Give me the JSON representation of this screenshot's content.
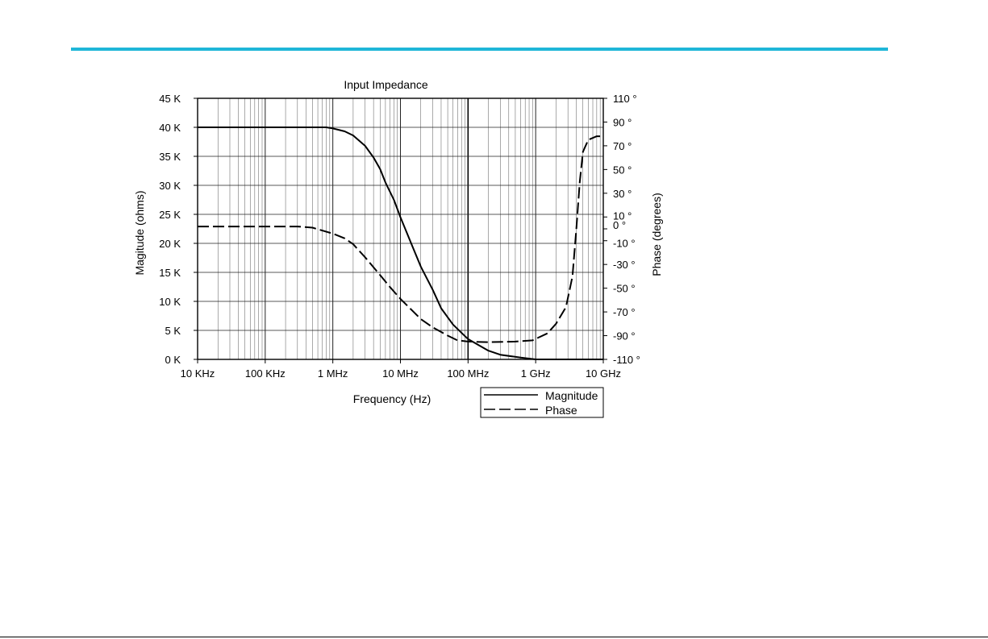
{
  "colors": {
    "accent_rule": "#1fb6d8",
    "line": "#000000",
    "grid": "#555555"
  },
  "chart_data": {
    "type": "line",
    "title": "Input Impedance",
    "xlabel": "Frequency (Hz)",
    "ylabel_left": "Magitude (ohms)",
    "ylabel_right": "Phase (degrees)",
    "x_scale": "log",
    "xlim": [
      10000,
      10000000000
    ],
    "x_ticks": [
      10000,
      100000,
      1000000,
      10000000,
      100000000,
      1000000000,
      10000000000
    ],
    "x_tick_labels": [
      "10 KHz",
      "100 KHz",
      "1 MHz",
      "10 MHz",
      "100 MHz",
      "1 GHz",
      "10 GHz"
    ],
    "ylim_left": [
      0,
      45000
    ],
    "y_left_ticks": [
      0,
      5000,
      10000,
      15000,
      20000,
      25000,
      30000,
      35000,
      40000,
      45000
    ],
    "y_left_tick_labels": [
      "0 K",
      "5 K",
      "10 K",
      "15 K",
      "20 K",
      "25 K",
      "30 K",
      "35 K",
      "40 K",
      "45 K"
    ],
    "ylim_right": [
      -110,
      110
    ],
    "y_right_ticks": [
      110,
      90,
      70,
      50,
      30,
      10,
      0,
      -10,
      -30,
      -50,
      -70,
      -90,
      -110
    ],
    "y_right_tick_labels": [
      "110 °",
      "90 °",
      "70 °",
      "50 °",
      "30 °",
      "10 °",
      "0 °",
      "-10 °",
      "-30 °",
      "-50 °",
      "-70 °",
      "-90 °",
      "-110 °"
    ],
    "grid": true,
    "legend_position": "bottom-right, below plot",
    "series": [
      {
        "name": "Magnitude",
        "axis": "left",
        "style": "solid",
        "x": [
          10000,
          100000,
          800000,
          1000000,
          1500000,
          2000000,
          3000000,
          4000000,
          5000000,
          6000000,
          8000000,
          10000000,
          15000000,
          20000000,
          30000000,
          40000000,
          60000000,
          100000000,
          200000000,
          300000000,
          600000000,
          1000000000,
          3000000000,
          10000000000
        ],
        "values": [
          40000,
          40000,
          40000,
          39800,
          39300,
          38600,
          36800,
          34800,
          32800,
          30500,
          27500,
          24500,
          19500,
          16000,
          12000,
          8800,
          6000,
          3500,
          1500,
          800,
          300,
          0,
          0,
          0
        ]
      },
      {
        "name": "Phase",
        "axis": "right",
        "style": "dashed",
        "x": [
          10000,
          100000,
          300000,
          500000,
          1000000,
          1500000,
          2000000,
          3000000,
          5000000,
          7000000,
          10000000,
          15000000,
          20000000,
          30000000,
          50000000,
          70000000,
          100000000,
          200000000,
          500000000,
          900000000,
          1500000000,
          2000000000,
          2800000000,
          3500000000,
          4000000000,
          4500000000,
          5000000000,
          6000000000,
          8000000000,
          10000000000
        ],
        "values": [
          2,
          2,
          2,
          1,
          -4,
          -8,
          -13,
          -24,
          -39,
          -49,
          -59,
          -69,
          -76,
          -83,
          -90,
          -94,
          -95,
          -95.5,
          -95,
          -94,
          -88,
          -80,
          -66,
          -40,
          0,
          40,
          65,
          75,
          78,
          78
        ]
      }
    ]
  }
}
